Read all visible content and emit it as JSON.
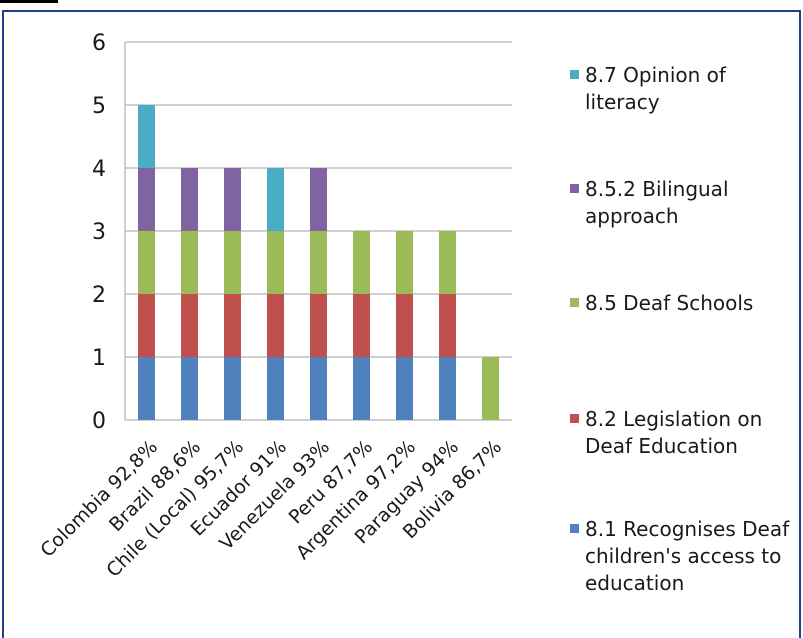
{
  "chart_data": {
    "type": "bar",
    "stacked": true,
    "categories": [
      "Colombia 92,8%",
      "Brazil 88,6%",
      "Chile (Local) 95,7%",
      "Ecuador 91%",
      "Venezuela 93%",
      "Peru 87,7%",
      "Argentina 97,2%",
      "Paraguay 94%",
      "Bolivia 86,7%"
    ],
    "series": [
      {
        "name": "8.1 Recognises Deaf children's access to education",
        "color": "#4f81bd",
        "values": [
          1,
          1,
          1,
          1,
          1,
          1,
          1,
          1,
          0
        ]
      },
      {
        "name": "8.2 Legislation on Deaf Education",
        "color": "#c0504d",
        "values": [
          1,
          1,
          1,
          1,
          1,
          1,
          1,
          1,
          0
        ]
      },
      {
        "name": "8.5 Deaf Schools",
        "color": "#9bbb59",
        "values": [
          1,
          1,
          1,
          1,
          1,
          1,
          1,
          1,
          1
        ]
      },
      {
        "name": "8.5.2 Bilingual approach",
        "color": "#8064a2",
        "values": [
          1,
          1,
          1,
          0,
          1,
          0,
          0,
          0,
          0
        ]
      },
      {
        "name": "8.7 Opinion of literacy",
        "color": "#4bacc6",
        "values": [
          1,
          0,
          0,
          1,
          0,
          0,
          0,
          0,
          0
        ]
      }
    ],
    "legend_order": [
      "8.7 Opinion of literacy",
      "8.5.2 Bilingual approach",
      "8.5 Deaf Schools",
      "8.2 Legislation on Deaf Education",
      "8.1 Recognises Deaf children's access to education"
    ],
    "legend_display": {
      "8.7 Opinion of literacy": "8.7 Opinion of\nliteracy",
      "8.5.2 Bilingual approach": "8.5.2 Bilingual\napproach",
      "8.5 Deaf Schools": "8.5 Deaf Schools",
      "8.2 Legislation on Deaf Education": "8.2 Legislation on\nDeaf Education",
      "8.1 Recognises Deaf children's access to education": "8.1 Recognises Deaf\nchildren's access to\neducation"
    },
    "ylim": [
      0,
      6
    ],
    "yticks": [
      "0",
      "1",
      "2",
      "3",
      "4",
      "5",
      "6"
    ],
    "grid": true,
    "legend_position": "right",
    "gridline_color": "#b3b3b3",
    "frame_color": "#1f3f8f"
  }
}
